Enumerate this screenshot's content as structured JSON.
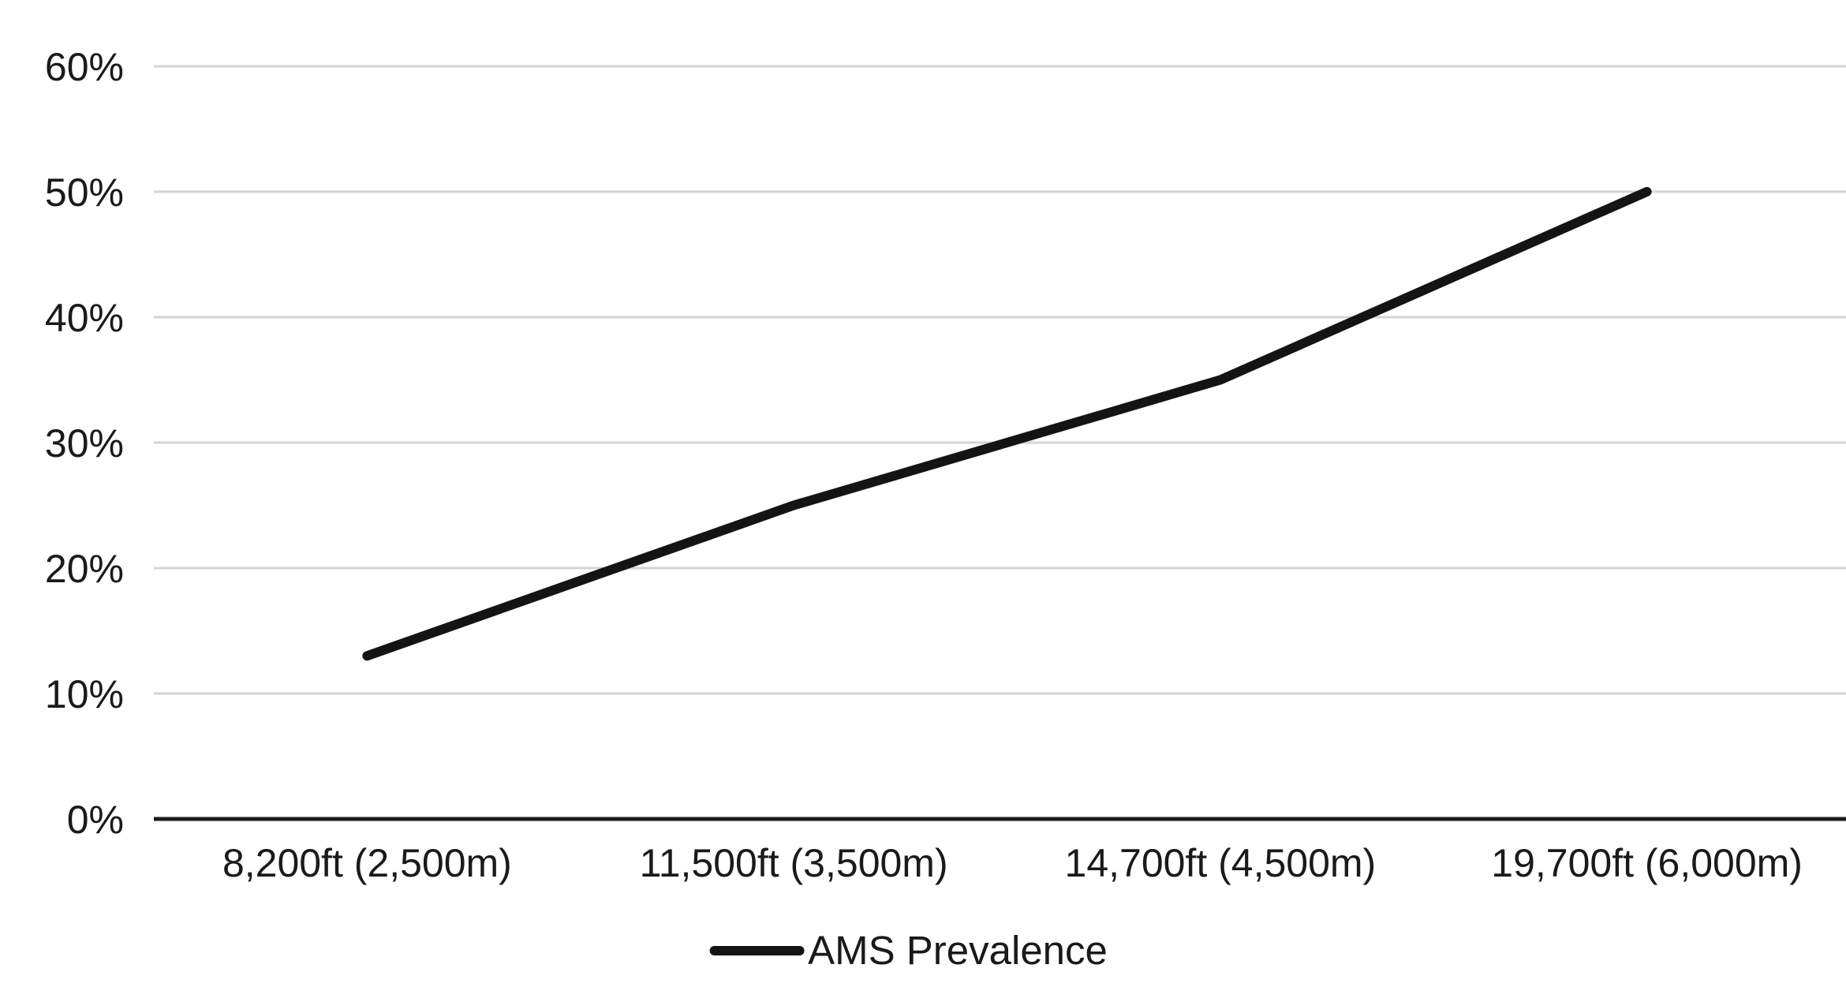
{
  "chart_data": {
    "type": "line",
    "categories": [
      "8,200ft (2,500m)",
      "11,500ft (3,500m)",
      "14,700ft (4,500m)",
      "19,700ft (6,000m)"
    ],
    "series": [
      {
        "name": "AMS Prevalence",
        "values": [
          13,
          25,
          35,
          50
        ]
      }
    ],
    "title": "",
    "xlabel": "",
    "ylabel": "",
    "ylim": [
      0,
      60
    ],
    "yticks": [
      {
        "value": 0,
        "label": "0%"
      },
      {
        "value": 10,
        "label": "10%"
      },
      {
        "value": 20,
        "label": "20%"
      },
      {
        "value": 30,
        "label": "30%"
      },
      {
        "value": 40,
        "label": "40%"
      },
      {
        "value": 50,
        "label": "50%"
      },
      {
        "value": 60,
        "label": "60%"
      }
    ],
    "grid": true,
    "legend_position": "bottom",
    "colors": {
      "series_line": "#141414",
      "gridline": "#d4d4d4",
      "axis_line": "#1a1a1a",
      "tick_text": "#1a1a1a",
      "background": "#ffffff"
    }
  }
}
